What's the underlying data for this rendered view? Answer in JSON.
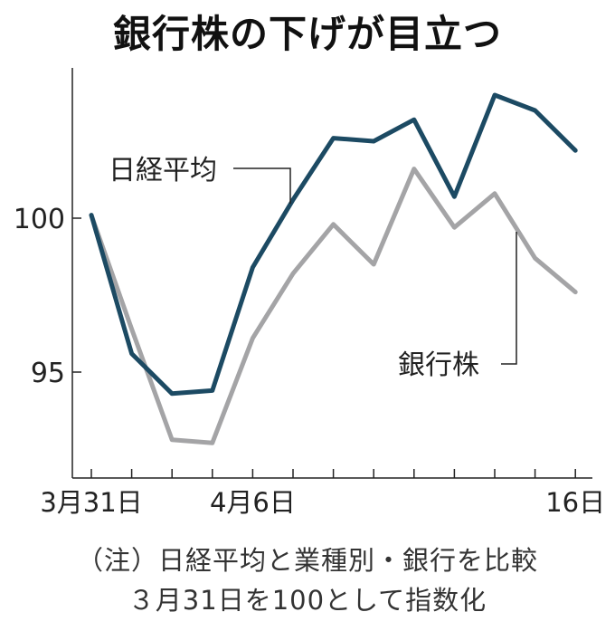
{
  "chart_data": {
    "type": "line",
    "title": "銀行株の下げが目立つ",
    "x_count": 13,
    "x_tick_labels": [
      {
        "index": 0,
        "label": "3月31日"
      },
      {
        "index": 4,
        "label": "4月6日"
      },
      {
        "index": 12,
        "label": "16日"
      }
    ],
    "y_ticks": [
      95,
      100
    ],
    "ylim": [
      91.6,
      104.9
    ],
    "grid": false,
    "series": [
      {
        "name": "日経平均",
        "color": "#1c4a63",
        "values": [
          100.1,
          95.6,
          94.3,
          94.4,
          98.4,
          100.6,
          102.6,
          102.5,
          103.2,
          100.7,
          104.0,
          103.5,
          102.2
        ]
      },
      {
        "name": "銀行株",
        "color": "#a4a4a6",
        "values": [
          100.1,
          96.4,
          92.8,
          92.7,
          96.1,
          98.2,
          99.8,
          98.5,
          101.6,
          99.7,
          100.8,
          98.7,
          97.6
        ]
      }
    ],
    "annotations": [
      "（注）日経平均と業種別・銀行を比較",
      "３月31日を100として指数化"
    ]
  }
}
